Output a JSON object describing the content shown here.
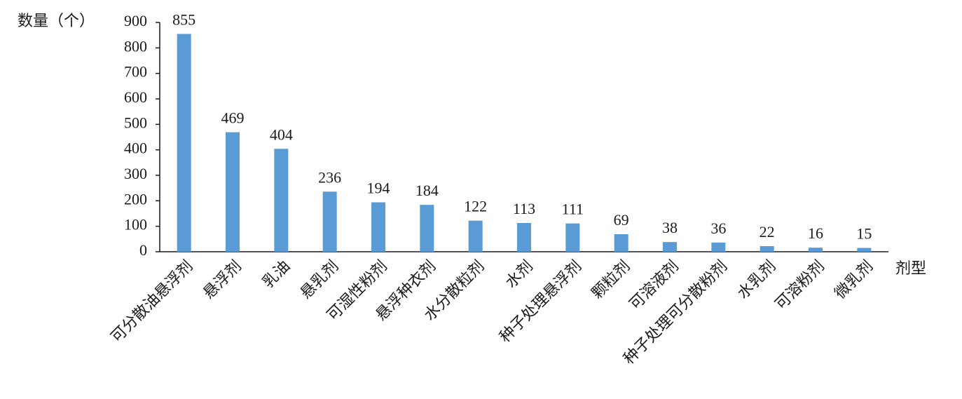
{
  "chart_data": {
    "type": "bar",
    "y_label": "数量（个）",
    "x_label": "剂型",
    "categories": [
      "可分散油悬浮剂",
      "悬浮剂",
      "乳油",
      "悬乳剂",
      "可湿性粉剂",
      "悬浮种衣剂",
      "水分散粒剂",
      "水剂",
      "种子处理悬浮剂",
      "颗粒剂",
      "可溶液剂",
      "种子处理可分散粉剂",
      "水乳剂",
      "可溶粉剂",
      "微乳剂"
    ],
    "values": [
      855,
      469,
      404,
      236,
      194,
      184,
      122,
      113,
      111,
      69,
      38,
      36,
      22,
      16,
      15
    ],
    "color": "#5b9bd5",
    "ylim": [
      0,
      900
    ],
    "yticks": [
      0,
      100,
      200,
      300,
      400,
      500,
      600,
      700,
      800,
      900
    ],
    "grid": false
  }
}
